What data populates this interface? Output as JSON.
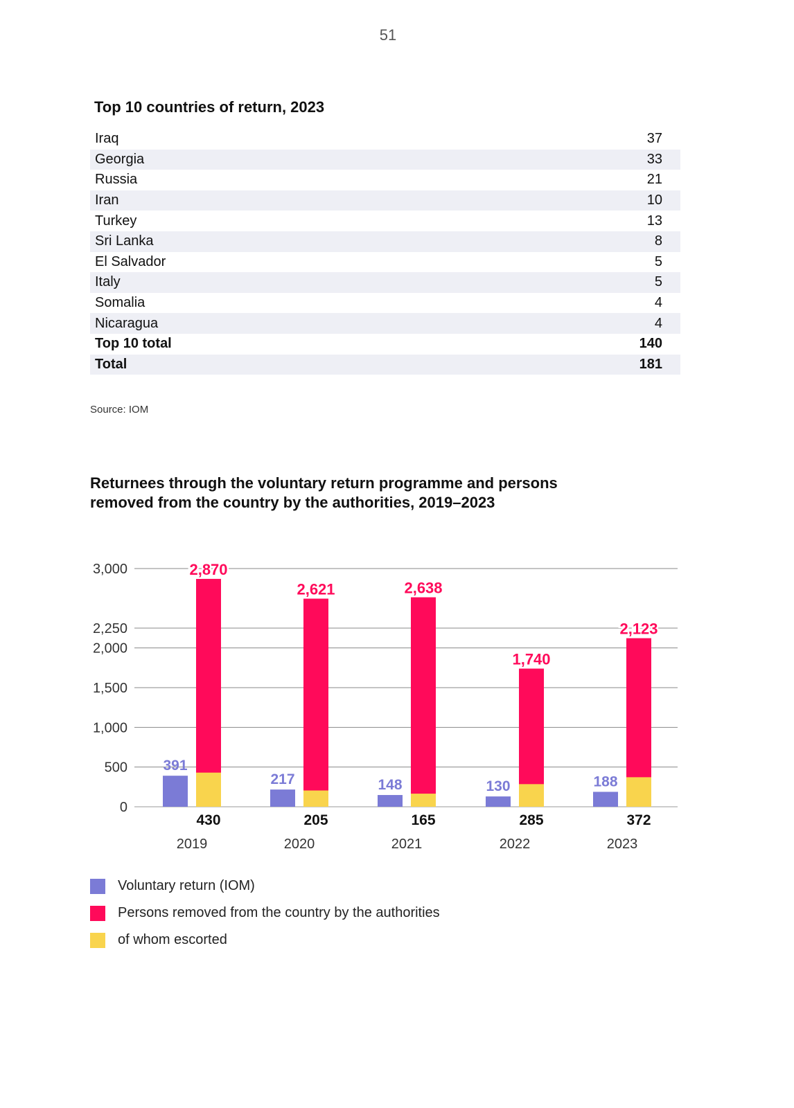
{
  "page_number": "51",
  "table": {
    "title": "Top 10 countries of return, 2023",
    "rows": [
      {
        "country": "Iraq",
        "value": "37"
      },
      {
        "country": "Georgia",
        "value": "33"
      },
      {
        "country": "Russia",
        "value": "21"
      },
      {
        "country": "Iran",
        "value": "10"
      },
      {
        "country": "Turkey",
        "value": "13"
      },
      {
        "country": "Sri Lanka",
        "value": "8"
      },
      {
        "country": "El Salvador",
        "value": "5"
      },
      {
        "country": "Italy",
        "value": "5"
      },
      {
        "country": "Somalia",
        "value": "4"
      },
      {
        "country": "Nicaragua",
        "value": "4"
      }
    ],
    "top10_total": {
      "label": "Top 10 total",
      "value": "140"
    },
    "total": {
      "label": "Total",
      "value": "181"
    }
  },
  "source": "Source: IOM",
  "chart_data": {
    "type": "bar",
    "title": "Returnees through the voluntary return programme and persons removed from the country by the authorities, 2019–2023",
    "categories": [
      "2019",
      "2020",
      "2021",
      "2022",
      "2023"
    ],
    "series": [
      {
        "name": "Voluntary return (IOM)",
        "values": [
          391,
          217,
          148,
          130,
          188
        ],
        "color": "#7b7bd6"
      },
      {
        "name": "Persons removed from the country by the authorities",
        "values": [
          2870,
          2621,
          2638,
          1740,
          2123
        ],
        "color": "#ff0a5a"
      },
      {
        "name": "of whom escorted",
        "values": [
          430,
          205,
          165,
          285,
          372
        ],
        "color": "#f9d44d"
      }
    ],
    "ylim": [
      0,
      3000
    ],
    "yticks": [
      0,
      500,
      1000,
      1500,
      2000,
      2250,
      3000
    ],
    "ytick_labels": [
      "0",
      "500",
      "1,000",
      "1,500",
      "2,000",
      "2,250",
      "3,000"
    ],
    "labels": {
      "voluntary": [
        "391",
        "217",
        "148",
        "130",
        "188"
      ],
      "removed": [
        "2,870",
        "2,621",
        "2,638",
        "1,740",
        "2,123"
      ],
      "escorted": [
        "430",
        "205",
        "165",
        "285",
        "372"
      ]
    },
    "grid": true,
    "legend_position": "bottom-left"
  }
}
